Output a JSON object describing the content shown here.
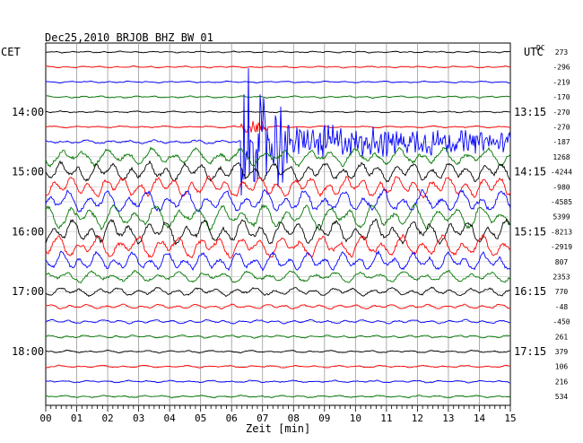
{
  "chart_data": {
    "type": "line",
    "title": "Dec25,2010   BRJOB BHZ BW 01",
    "left_label": "CET",
    "right_label": "UTC",
    "offset_header": "DC",
    "xlabel": "Zeit [min]",
    "x_ticks": [
      "00",
      "01",
      "02",
      "03",
      "04",
      "05",
      "06",
      "07",
      "08",
      "09",
      "10",
      "11",
      "12",
      "13",
      "14",
      "15"
    ],
    "xlim": [
      0,
      15
    ],
    "trace_colors": [
      "#000000",
      "#ff0000",
      "#0000ff",
      "#007700"
    ],
    "traces": [
      {
        "offset": "273",
        "amp": 0.8,
        "noise": 0.6
      },
      {
        "offset": "-296",
        "amp": 0.9,
        "noise": 0.6
      },
      {
        "offset": "-219",
        "amp": 0.9,
        "noise": 0.6
      },
      {
        "offset": "-170",
        "amp": 1.0,
        "noise": 0.7
      },
      {
        "offset": "-270",
        "amp": 0.8,
        "noise": 0.6
      },
      {
        "offset": "-270",
        "amp": 1.0,
        "noise": 0.6,
        "event": "small"
      },
      {
        "offset": "-187",
        "amp": 2.0,
        "noise": 1.2,
        "event": "quake"
      },
      {
        "offset": "1268",
        "amp": 9.0,
        "noise": 3.0
      },
      {
        "offset": "-4244",
        "amp": 10.0,
        "noise": 3.0
      },
      {
        "offset": "-980",
        "amp": 11.0,
        "noise": 3.0
      },
      {
        "offset": "-4585",
        "amp": 12.0,
        "noise": 3.5
      },
      {
        "offset": "5399",
        "amp": 13.0,
        "noise": 3.5
      },
      {
        "offset": "-8213",
        "amp": 13.0,
        "noise": 3.5
      },
      {
        "offset": "-2919",
        "amp": 12.0,
        "noise": 3.5
      },
      {
        "offset": "807",
        "amp": 10.0,
        "noise": 3.0
      },
      {
        "offset": "2353",
        "amp": 6.0,
        "noise": 2.0
      },
      {
        "offset": "770",
        "amp": 4.5,
        "noise": 1.5
      },
      {
        "offset": "-48",
        "amp": 2.5,
        "noise": 1.0
      },
      {
        "offset": "-450",
        "amp": 2.0,
        "noise": 0.9
      },
      {
        "offset": "261",
        "amp": 1.5,
        "noise": 0.8
      },
      {
        "offset": "379",
        "amp": 1.3,
        "noise": 0.7
      },
      {
        "offset": "106",
        "amp": 1.2,
        "noise": 0.7
      },
      {
        "offset": "216",
        "amp": 1.2,
        "noise": 0.7
      },
      {
        "offset": "534",
        "amp": 1.2,
        "noise": 0.7
      }
    ],
    "hour_labels": [
      {
        "trace": 4,
        "cet": "14:00",
        "utc": "13:15"
      },
      {
        "trace": 8,
        "cet": "15:00",
        "utc": "14:15"
      },
      {
        "trace": 12,
        "cet": "16:00",
        "utc": "15:15"
      },
      {
        "trace": 16,
        "cet": "17:00",
        "utc": "16:15"
      },
      {
        "trace": 20,
        "cet": "18:00",
        "utc": "17:15"
      }
    ],
    "grid": true
  }
}
